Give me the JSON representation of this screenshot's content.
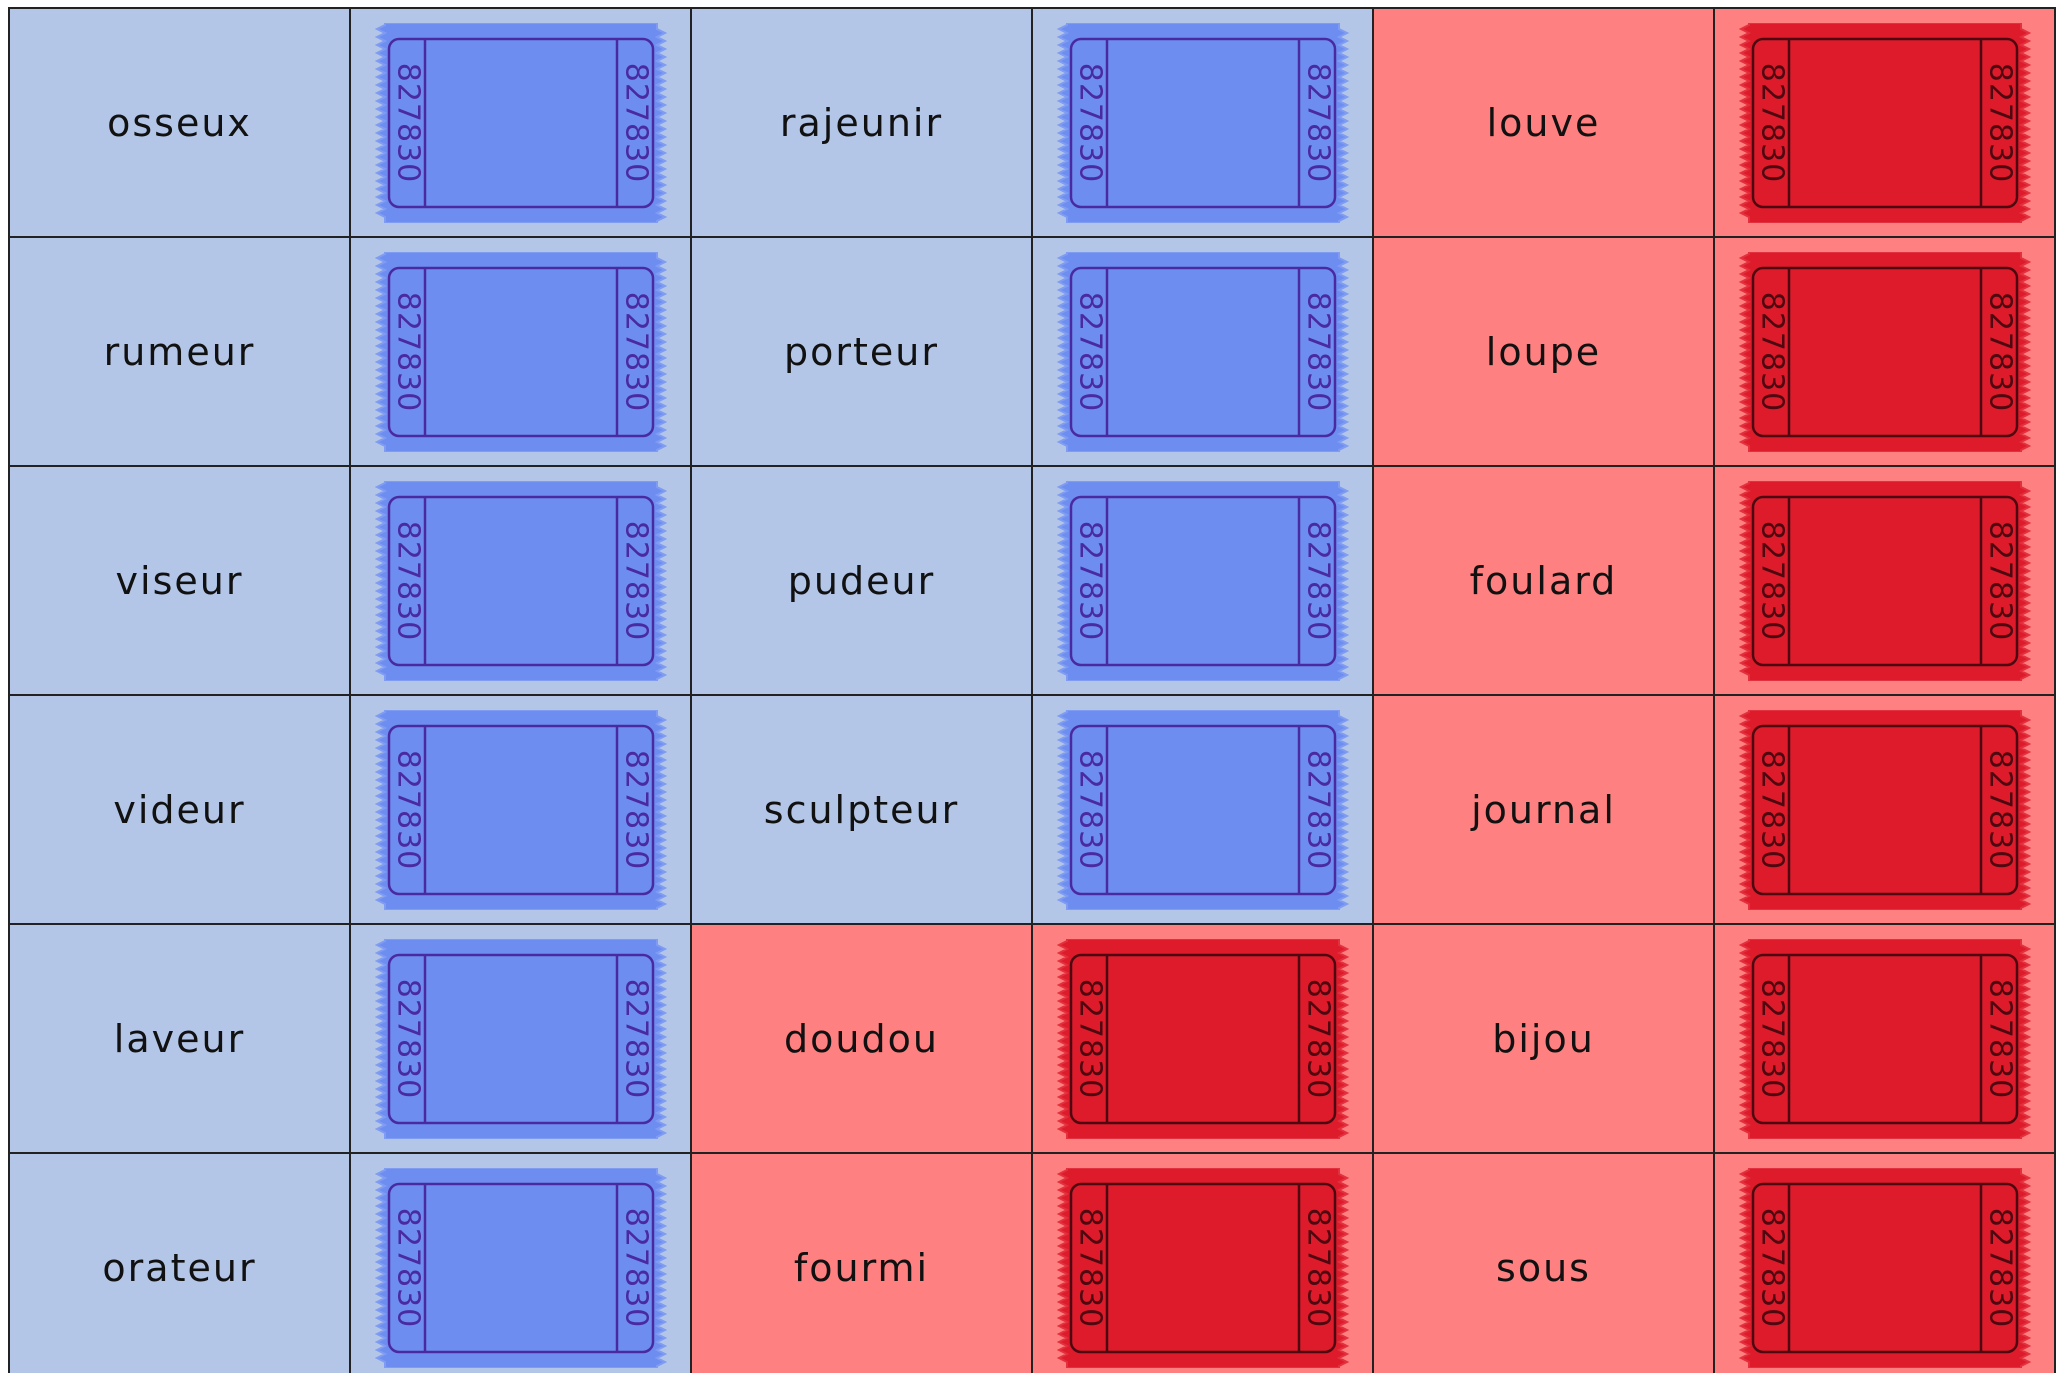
{
  "table": {
    "rows": [
      [
        {
          "word": "osseux",
          "color": "blue",
          "ticket": [
            "827830",
            "827830"
          ]
        },
        {
          "word": "rajeunir",
          "color": "blue",
          "ticket": [
            "827830",
            "827830"
          ]
        },
        {
          "word": "louve",
          "color": "red",
          "ticket": [
            "827830",
            "827830"
          ]
        }
      ],
      [
        {
          "word": "rumeur",
          "color": "blue",
          "ticket": [
            "827830",
            "827830"
          ]
        },
        {
          "word": "porteur",
          "color": "blue",
          "ticket": [
            "827830",
            "827830"
          ]
        },
        {
          "word": "loupe",
          "color": "red",
          "ticket": [
            "827830",
            "827830"
          ]
        }
      ],
      [
        {
          "word": "viseur",
          "color": "blue",
          "ticket": [
            "827830",
            "827830"
          ]
        },
        {
          "word": "pudeur",
          "color": "blue",
          "ticket": [
            "827830",
            "827830"
          ]
        },
        {
          "word": "foulard",
          "color": "red",
          "ticket": [
            "827830",
            "827830"
          ]
        }
      ],
      [
        {
          "word": "videur",
          "color": "blue",
          "ticket": [
            "827830",
            "827830"
          ]
        },
        {
          "word": "sculpteur",
          "color": "blue",
          "ticket": [
            "827830",
            "827830"
          ]
        },
        {
          "word": "journal",
          "color": "red",
          "ticket": [
            "827830",
            "827830"
          ]
        }
      ],
      [
        {
          "word": "laveur",
          "color": "blue",
          "ticket": [
            "827830",
            "827830"
          ]
        },
        {
          "word": "doudou",
          "color": "red",
          "ticket": [
            "827830",
            "827830"
          ]
        },
        {
          "word": "bijou",
          "color": "red",
          "ticket": [
            "827830",
            "827830"
          ]
        }
      ],
      [
        {
          "word": "orateur",
          "color": "blue",
          "ticket": [
            "827830",
            "827830"
          ]
        },
        {
          "word": "fourmi",
          "color": "red",
          "ticket": [
            "827830",
            "827830"
          ]
        },
        {
          "word": "sous",
          "color": "red",
          "ticket": [
            "827830",
            "827830"
          ]
        }
      ]
    ]
  }
}
